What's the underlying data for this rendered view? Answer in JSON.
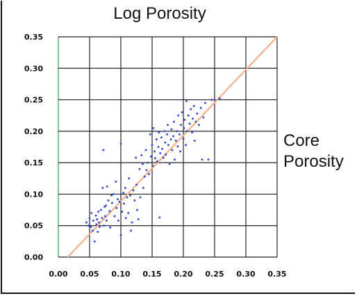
{
  "chart_data": {
    "type": "scatter",
    "title": "Log Porosity",
    "xlabel": "",
    "ylabel": "Core Porosity",
    "xlim": [
      0,
      0.35
    ],
    "ylim": [
      0,
      0.35
    ],
    "x_ticks": [
      "0.00",
      "0.05",
      "0.10",
      "0.15",
      "0.20",
      "0.25",
      "0.30",
      "0.35"
    ],
    "y_ticks": [
      "0.00",
      "0.05",
      "0.10",
      "0.15",
      "0.20",
      "0.25",
      "0.30",
      "0.35"
    ],
    "grid": true,
    "point_color": "#3b4fd0",
    "reference_line": {
      "color": "#f5b08c",
      "from": [
        0.015,
        0.0
      ],
      "to": [
        0.35,
        0.35
      ]
    },
    "points": [
      [
        0.045,
        0.055
      ],
      [
        0.048,
        0.05
      ],
      [
        0.05,
        0.062
      ],
      [
        0.052,
        0.048
      ],
      [
        0.053,
        0.07
      ],
      [
        0.055,
        0.042
      ],
      [
        0.056,
        0.058
      ],
      [
        0.058,
        0.025
      ],
      [
        0.06,
        0.066
      ],
      [
        0.061,
        0.052
      ],
      [
        0.062,
        0.06
      ],
      [
        0.063,
        0.04
      ],
      [
        0.064,
        0.072
      ],
      [
        0.065,
        0.055
      ],
      [
        0.066,
        0.048
      ],
      [
        0.068,
        0.075
      ],
      [
        0.07,
        0.062
      ],
      [
        0.071,
        0.11
      ],
      [
        0.072,
        0.17
      ],
      [
        0.073,
        0.05
      ],
      [
        0.074,
        0.08
      ],
      [
        0.075,
        0.065
      ],
      [
        0.076,
        0.082
      ],
      [
        0.077,
        0.058
      ],
      [
        0.078,
        0.112
      ],
      [
        0.08,
        0.09
      ],
      [
        0.082,
        0.073
      ],
      [
        0.083,
        0.047
      ],
      [
        0.085,
        0.098
      ],
      [
        0.086,
        0.086
      ],
      [
        0.088,
        0.1
      ],
      [
        0.09,
        0.065
      ],
      [
        0.092,
        0.12
      ],
      [
        0.093,
        0.078
      ],
      [
        0.095,
        0.092
      ],
      [
        0.096,
        0.058
      ],
      [
        0.098,
        0.088
      ],
      [
        0.1,
        0.035
      ],
      [
        0.1,
        0.18
      ],
      [
        0.102,
        0.072
      ],
      [
        0.104,
        0.102
      ],
      [
        0.105,
        0.085
      ],
      [
        0.107,
        0.11
      ],
      [
        0.108,
        0.062
      ],
      [
        0.11,
        0.095
      ],
      [
        0.112,
        0.07
      ],
      [
        0.113,
        0.125
      ],
      [
        0.115,
        0.098
      ],
      [
        0.116,
        0.042
      ],
      [
        0.118,
        0.055
      ],
      [
        0.12,
        0.106
      ],
      [
        0.122,
        0.09
      ],
      [
        0.124,
        0.158
      ],
      [
        0.125,
        0.115
      ],
      [
        0.126,
        0.075
      ],
      [
        0.128,
        0.06
      ],
      [
        0.13,
        0.14
      ],
      [
        0.131,
        0.095
      ],
      [
        0.133,
        0.162
      ],
      [
        0.135,
        0.148
      ],
      [
        0.136,
        0.11
      ],
      [
        0.138,
        0.128
      ],
      [
        0.14,
        0.17
      ],
      [
        0.141,
        0.138
      ],
      [
        0.143,
        0.15
      ],
      [
        0.145,
        0.132
      ],
      [
        0.147,
        0.195
      ],
      [
        0.148,
        0.16
      ],
      [
        0.15,
        0.178
      ],
      [
        0.151,
        0.145
      ],
      [
        0.152,
        0.205
      ],
      [
        0.154,
        0.168
      ],
      [
        0.155,
        0.157
      ],
      [
        0.157,
        0.187
      ],
      [
        0.158,
        0.152
      ],
      [
        0.16,
        0.175
      ],
      [
        0.161,
        0.198
      ],
      [
        0.162,
        0.063
      ],
      [
        0.163,
        0.165
      ],
      [
        0.165,
        0.19
      ],
      [
        0.166,
        0.172
      ],
      [
        0.168,
        0.158
      ],
      [
        0.17,
        0.2
      ],
      [
        0.171,
        0.182
      ],
      [
        0.172,
        0.163
      ],
      [
        0.174,
        0.195
      ],
      [
        0.175,
        0.21
      ],
      [
        0.176,
        0.178
      ],
      [
        0.178,
        0.148
      ],
      [
        0.18,
        0.187
      ],
      [
        0.181,
        0.203
      ],
      [
        0.182,
        0.17
      ],
      [
        0.184,
        0.192
      ],
      [
        0.185,
        0.215
      ],
      [
        0.186,
        0.155
      ],
      [
        0.188,
        0.185
      ],
      [
        0.19,
        0.2
      ],
      [
        0.191,
        0.176
      ],
      [
        0.192,
        0.225
      ],
      [
        0.194,
        0.195
      ],
      [
        0.195,
        0.168
      ],
      [
        0.196,
        0.21
      ],
      [
        0.198,
        0.23
      ],
      [
        0.2,
        0.188
      ],
      [
        0.201,
        0.205
      ],
      [
        0.202,
        0.218
      ],
      [
        0.204,
        0.178
      ],
      [
        0.205,
        0.248
      ],
      [
        0.206,
        0.2
      ],
      [
        0.208,
        0.225
      ],
      [
        0.21,
        0.212
      ],
      [
        0.212,
        0.235
      ],
      [
        0.214,
        0.198
      ],
      [
        0.215,
        0.22
      ],
      [
        0.217,
        0.24
      ],
      [
        0.218,
        0.185
      ],
      [
        0.22,
        0.215
      ],
      [
        0.222,
        0.228
      ],
      [
        0.225,
        0.21
      ],
      [
        0.228,
        0.237
      ],
      [
        0.23,
        0.155
      ],
      [
        0.232,
        0.222
      ],
      [
        0.235,
        0.245
      ],
      [
        0.24,
        0.155
      ],
      [
        0.245,
        0.25
      ],
      [
        0.25,
        0.25
      ],
      [
        0.258,
        0.252
      ]
    ]
  }
}
